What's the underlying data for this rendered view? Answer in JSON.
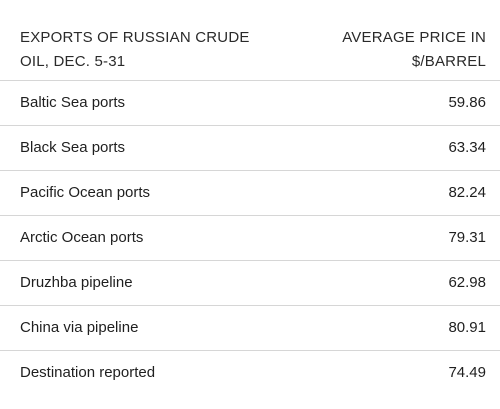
{
  "chart_data": {
    "type": "table",
    "columns": [
      [
        "EXPORTS OF RUSSIAN CRUDE",
        "OIL, DEC. 5-31"
      ],
      [
        "AVERAGE PRICE IN",
        "$/BARREL"
      ]
    ],
    "rows": [
      {
        "label": "Baltic Sea ports",
        "value": "59.86"
      },
      {
        "label": "Black Sea ports",
        "value": "63.34"
      },
      {
        "label": "Pacific Ocean ports",
        "value": "82.24"
      },
      {
        "label": "Arctic Ocean ports",
        "value": "79.31"
      },
      {
        "label": "Druzhba pipeline",
        "value": "62.98"
      },
      {
        "label": "China via pipeline",
        "value": "80.91"
      },
      {
        "label": "Destination reported",
        "value": "74.49"
      }
    ]
  }
}
